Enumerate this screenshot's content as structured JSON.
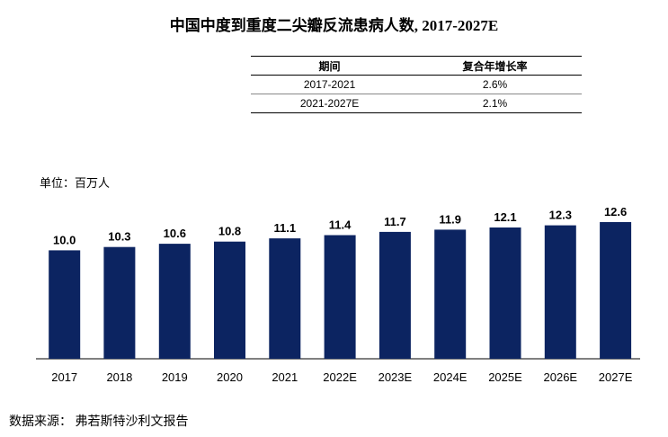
{
  "title": "中国中度到重度二尖瓣反流患病人数, 2017-2027E",
  "cagr_table": {
    "headers": [
      "期间",
      "复合年增长率"
    ],
    "rows": [
      [
        "2017-2021",
        "2.6%"
      ],
      [
        "2021-2027E",
        "2.1%"
      ]
    ]
  },
  "unit_label": "单位：百万人",
  "source": "数据来源：  弗若斯特沙利文报告",
  "colors": {
    "bar": "#0c2461",
    "text": "#000000"
  },
  "chart_data": {
    "type": "bar",
    "title": "中国中度到重度二尖瓣反流患病人数, 2017-2027E",
    "xlabel": "",
    "ylabel": "",
    "categories": [
      "2017",
      "2018",
      "2019",
      "2020",
      "2021",
      "2022E",
      "2023E",
      "2024E",
      "2025E",
      "2026E",
      "2027E"
    ],
    "values": [
      10.0,
      10.3,
      10.6,
      10.8,
      11.1,
      11.4,
      11.7,
      11.9,
      12.1,
      12.3,
      12.6
    ],
    "ylim": [
      0,
      12.6
    ],
    "grid": false,
    "legend": "none"
  }
}
